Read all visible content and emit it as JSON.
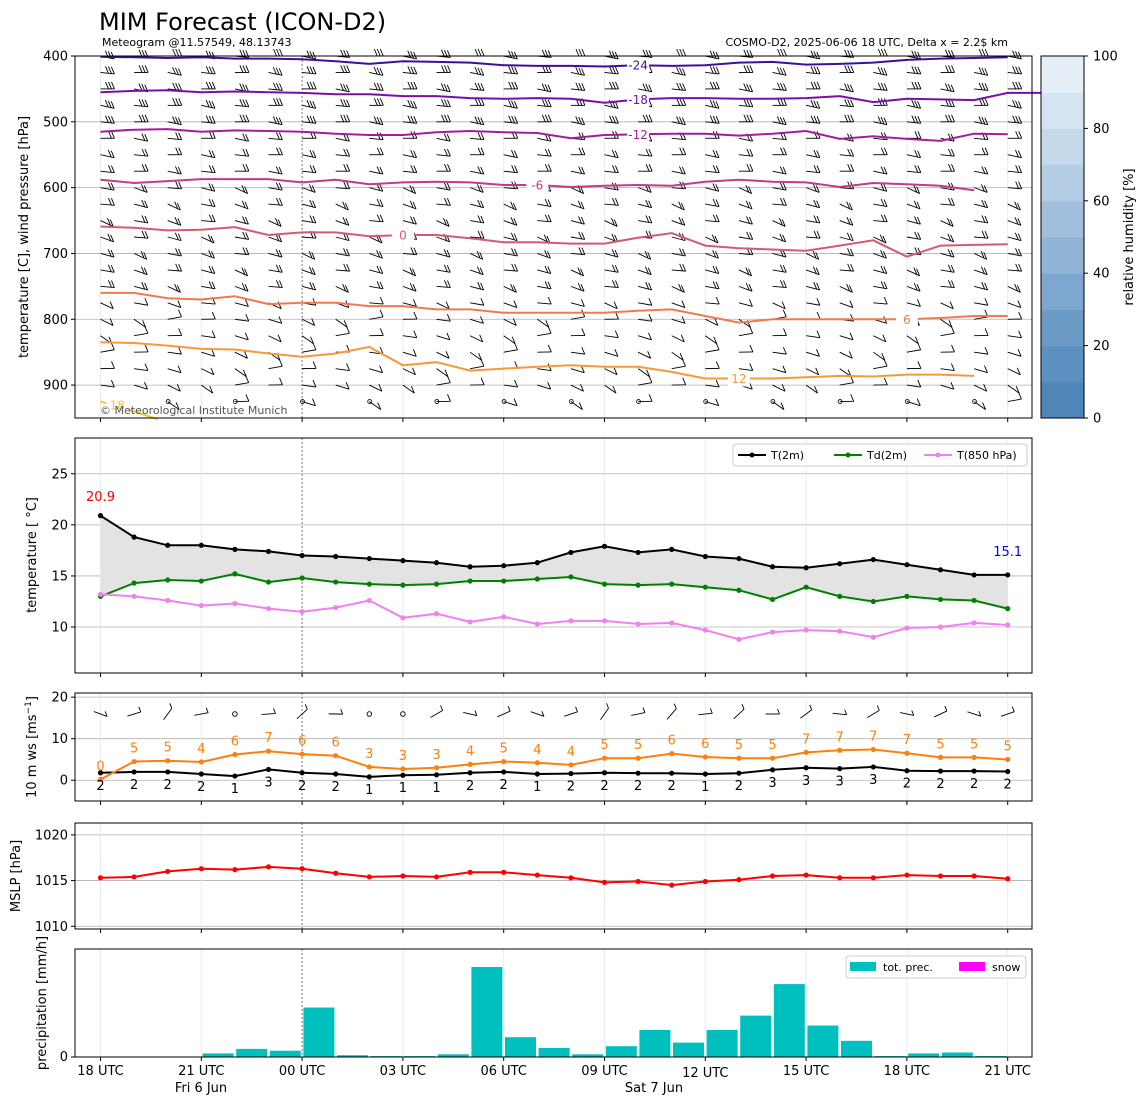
{
  "header": {
    "title": "MIM Forecast (ICON-D2)",
    "subtitle_left": "Meteogram @11.57549, 48.13743",
    "subtitle_right": "COSMO-D2, 2025-06-06 18 UTC, Delta x = 2.2$ km",
    "copyright": "© Meteorological Institute Munich"
  },
  "colors": {
    "t2m": "#000000",
    "td2m": "#008000",
    "t850": "#ee82ee",
    "ws": "#000000",
    "gust": "#ff7f0e",
    "mslp": "#ff0000",
    "precip": "#00bfbf",
    "snow": "#ff00ff",
    "spread_fill": "#e3e3e3",
    "label_max": "#ff0000",
    "label_last": "#0000ff"
  },
  "chart_data": [
    {
      "id": "upper_air",
      "type": "contour",
      "ylabel": "temperature [C], wind pressure [hPa]",
      "ylim": [
        950,
        400
      ],
      "yticks": [
        400,
        500,
        600,
        700,
        800,
        900
      ],
      "colorbar": {
        "label": "relative humidity [%]",
        "ticks": [
          0,
          20,
          40,
          60,
          80,
          100
        ]
      },
      "isotherm_labels": [
        "-24",
        "-18",
        "-12",
        "-6",
        "0",
        "6",
        "12",
        "18"
      ],
      "isotherms": [
        {
          "label": "-24",
          "value": -24,
          "color": "#3f0f9a",
          "p": [
            401,
            402,
            403,
            402,
            404,
            404,
            405,
            408,
            412,
            408,
            409,
            410,
            414,
            415,
            415,
            416,
            414,
            415,
            414,
            410,
            409,
            413,
            412,
            410,
            406,
            404,
            403,
            402
          ]
        },
        {
          "label": "-18",
          "value": -18,
          "color": "#7a0fa8",
          "p": [
            455,
            453,
            452,
            455,
            454,
            455,
            456,
            458,
            458,
            461,
            461,
            464,
            465,
            464,
            465,
            471,
            466,
            464,
            464,
            465,
            465,
            464,
            461,
            470,
            465,
            466,
            467,
            456,
            456
          ]
        },
        {
          "label": "-12",
          "value": -12,
          "color": "#a01e9e",
          "p": [
            515,
            512,
            511,
            515,
            513,
            514,
            515,
            518,
            520,
            520,
            516,
            514,
            516,
            517,
            525,
            520,
            519,
            518,
            518,
            521,
            518,
            514,
            526,
            522,
            526,
            529,
            518,
            519
          ]
        },
        {
          "label": "-6",
          "value": -6,
          "color": "#c23a88",
          "p": [
            588,
            593,
            590,
            587,
            587,
            587,
            592,
            588,
            595,
            592,
            591,
            592,
            596,
            596,
            599,
            597,
            596,
            597,
            591,
            588,
            591,
            592,
            599,
            593,
            595,
            597,
            604
          ]
        },
        {
          "label": "0",
          "value": 0,
          "color": "#d45a6e",
          "p": [
            659,
            661,
            665,
            664,
            660,
            672,
            668,
            668,
            674,
            672,
            672,
            677,
            683,
            683,
            685,
            685,
            676,
            669,
            688,
            692,
            694,
            696,
            688,
            680,
            705,
            688,
            687,
            686
          ]
        },
        {
          "label": "6",
          "value": 6,
          "color": "#ef7a4e",
          "p": [
            760,
            760,
            768,
            770,
            765,
            777,
            775,
            775,
            780,
            780,
            785,
            785,
            790,
            790,
            790,
            790,
            787,
            785,
            795,
            805,
            800,
            800,
            800,
            800,
            800,
            798,
            795,
            795
          ]
        },
        {
          "label": "12",
          "value": 12,
          "color": "#f59a3a",
          "p": [
            835,
            836,
            840,
            845,
            846,
            852,
            857,
            852,
            842,
            870,
            865,
            878,
            875,
            872,
            870,
            872,
            872,
            880,
            890,
            890,
            890,
            888,
            886,
            887,
            884,
            884,
            886
          ]
        },
        {
          "label": "18",
          "value": 18,
          "color": "#f8c52f",
          "p": [
            925,
            935,
            945,
            952
          ]
        }
      ]
    },
    {
      "id": "temperature",
      "type": "line",
      "ylabel": "temperature [$^\\circ$C]",
      "ylim": [
        5.5,
        28.5
      ],
      "yticks": [
        10,
        15,
        20,
        25
      ],
      "series": [
        {
          "name": "T(2m)",
          "key": "t2m",
          "values": [
            20.9,
            18.8,
            18.0,
            18.0,
            17.6,
            17.4,
            17.0,
            16.9,
            16.7,
            16.5,
            16.3,
            15.9,
            16.0,
            16.3,
            17.3,
            17.9,
            17.3,
            17.6,
            16.9,
            16.7,
            15.9,
            15.8,
            16.2,
            16.6,
            16.1,
            15.6,
            15.1,
            15.1
          ]
        },
        {
          "name": "Td(2m)",
          "key": "td2m",
          "values": [
            13.0,
            14.3,
            14.6,
            14.5,
            15.2,
            14.4,
            14.8,
            14.4,
            14.2,
            14.1,
            14.2,
            14.5,
            14.5,
            14.7,
            14.9,
            14.2,
            14.1,
            14.2,
            13.9,
            13.6,
            12.7,
            13.9,
            13.0,
            12.5,
            13.0,
            12.7,
            12.6,
            11.8
          ]
        },
        {
          "name": "T(850 hPa)",
          "key": "t850",
          "values": [
            13.2,
            13.0,
            12.6,
            12.1,
            12.3,
            11.8,
            11.5,
            11.9,
            12.6,
            10.9,
            11.3,
            10.5,
            11.0,
            10.3,
            10.6,
            10.6,
            10.3,
            10.4,
            9.7,
            8.8,
            9.5,
            9.7,
            9.6,
            9.0,
            9.9,
            10.0,
            10.4,
            10.2
          ]
        }
      ],
      "annotations": {
        "max_label": "20.9",
        "last_label": "15.1"
      }
    },
    {
      "id": "wind10m",
      "type": "line",
      "ylabel": "10 m ws [ms$^{-1}$]",
      "ylim": [
        -5,
        21
      ],
      "yticks": [
        0,
        10,
        20
      ],
      "series": [
        {
          "name": "ws",
          "key": "ws",
          "values": [
            1.8,
            2.0,
            2.0,
            1.5,
            1.0,
            2.6,
            1.8,
            1.5,
            0.8,
            1.2,
            1.3,
            1.8,
            2.0,
            1.5,
            1.6,
            1.8,
            1.7,
            1.7,
            1.5,
            1.7,
            2.5,
            3.0,
            2.8,
            3.2,
            2.3,
            2.2,
            2.2,
            2.1
          ]
        },
        {
          "name": "gust",
          "key": "gust",
          "values": [
            0.2,
            4.5,
            4.7,
            4.4,
            6.2,
            7.0,
            6.3,
            5.9,
            3.2,
            2.7,
            3.0,
            3.8,
            4.5,
            4.2,
            3.7,
            5.3,
            5.3,
            6.4,
            5.6,
            5.3,
            5.3,
            6.7,
            7.2,
            7.4,
            6.5,
            5.5,
            5.5,
            5.0
          ]
        }
      ],
      "ws_labels": [
        "2",
        "2",
        "2",
        "2",
        "1",
        "3",
        "2",
        "2",
        "1",
        "1",
        "1",
        "2",
        "2",
        "1",
        "2",
        "2",
        "2",
        "2",
        "1",
        "2",
        "3",
        "3",
        "3",
        "3",
        "2",
        "2",
        "2",
        "2"
      ],
      "gust_labels": [
        "0",
        "5",
        "5",
        "4",
        "6",
        "7",
        "6",
        "6",
        "3",
        "3",
        "3",
        "4",
        "5",
        "4",
        "4",
        "5",
        "5",
        "6",
        "6",
        "5",
        "5",
        "7",
        "7",
        "7",
        "7",
        "5",
        "5",
        "5"
      ]
    },
    {
      "id": "mslp",
      "type": "line",
      "ylabel": "MSLP [hPa]",
      "ylim": [
        1009.7,
        1021.3
      ],
      "yticks": [
        1010,
        1015,
        1020
      ],
      "series": [
        {
          "name": "MSLP",
          "key": "mslp",
          "values": [
            1015.3,
            1015.4,
            1016.0,
            1016.3,
            1016.2,
            1016.5,
            1016.3,
            1015.8,
            1015.4,
            1015.5,
            1015.4,
            1015.9,
            1015.9,
            1015.6,
            1015.3,
            1014.8,
            1014.9,
            1014.5,
            1014.9,
            1015.1,
            1015.5,
            1015.6,
            1015.3,
            1015.3,
            1015.6,
            1015.5,
            1015.5,
            1015.2
          ]
        }
      ]
    },
    {
      "id": "precipitation",
      "type": "bar",
      "ylabel": "precipitation [mm/h]",
      "ylim": [
        0,
        1.2
      ],
      "series": [
        {
          "name": "tot. prec.",
          "key": "precip",
          "values": [
            0,
            0,
            0,
            0.04,
            0.09,
            0.07,
            0.55,
            0.02,
            0.01,
            0.01,
            0.03,
            1.0,
            0.22,
            0.1,
            0.03,
            0.12,
            0.3,
            0.16,
            0.3,
            0.46,
            0.81,
            0.35,
            0.18,
            0.01,
            0.04,
            0.05,
            0.01,
            0
          ]
        },
        {
          "name": "snow",
          "key": "snow",
          "values": [
            0,
            0,
            0,
            0,
            0,
            0,
            0,
            0,
            0,
            0,
            0,
            0,
            0,
            0,
            0,
            0,
            0,
            0,
            0,
            0,
            0,
            0,
            0,
            0,
            0,
            0,
            0,
            0
          ]
        }
      ]
    }
  ],
  "x_axis": {
    "tick_labels": [
      "18 UTC",
      "21 UTC",
      "00 UTC",
      "03 UTC",
      "06 UTC",
      "09 UTC",
      "12 UTC",
      "15 UTC",
      "18 UTC",
      "21 UTC"
    ],
    "day_labels": [
      "Fri 6 Jun",
      "Sat 7 Jun"
    ],
    "hours_from_start": [
      0,
      3,
      6,
      9,
      12,
      15,
      18,
      21,
      24,
      27
    ]
  }
}
